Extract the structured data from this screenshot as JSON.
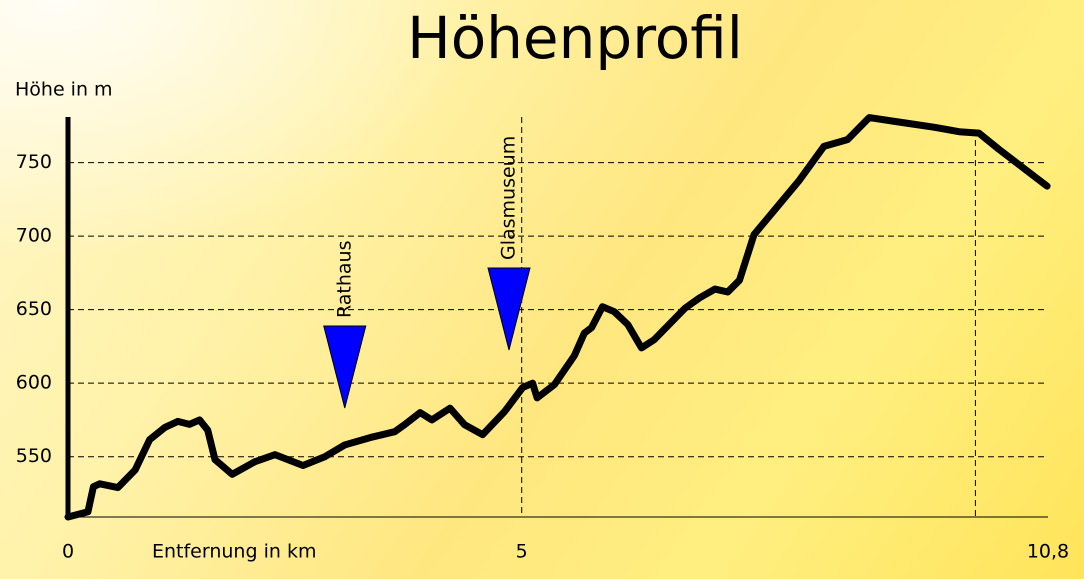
{
  "chart_data": {
    "type": "line",
    "title": "Höhenprofil",
    "y_label": "Höhe in m",
    "x_label": "Entfernung in km",
    "x": [
      0,
      0.22,
      0.28,
      0.35,
      0.55,
      0.74,
      0.9,
      1.07,
      1.21,
      1.34,
      1.45,
      1.54,
      1.62,
      1.81,
      2.06,
      2.28,
      2.59,
      2.83,
      3.05,
      3.33,
      3.6,
      3.71,
      3.88,
      4.01,
      4.21,
      4.37,
      4.57,
      4.81,
      5.01,
      5.12,
      5.17,
      5.36,
      5.58,
      5.69,
      5.77,
      5.89,
      6.02,
      6.17,
      6.32,
      6.46,
      6.8,
      6.96,
      7.13,
      7.27,
      7.4,
      7.56,
      7.79,
      8.06,
      8.33,
      8.59,
      8.83,
      9.22,
      9.55,
      9.82,
      10.04,
      10.26,
      10.79
    ],
    "series": [
      {
        "name": "Höhe",
        "color": "#000000",
        "values": [
          509,
          512.6,
          529.6,
          531.6,
          529,
          541,
          561.6,
          570,
          574,
          572,
          575,
          568,
          548,
          538,
          546.6,
          551.4,
          544,
          550,
          558,
          563,
          567,
          571.8,
          580,
          575,
          583,
          571.8,
          565,
          580.6,
          597,
          600,
          590,
          599,
          618.7,
          634,
          637.8,
          652,
          648.6,
          639.8,
          624,
          629.6,
          651,
          658,
          664,
          662,
          670,
          701,
          718,
          738,
          761,
          765.6,
          780.6,
          777,
          774,
          771,
          770,
          759,
          734
        ]
      }
    ],
    "xlim": [
      0,
      10.8
    ],
    "ylim": [
      509,
      781
    ],
    "xticks": [
      0,
      5,
      {
        "value": 10.8,
        "label": "10,8"
      }
    ],
    "yticks": [
      550,
      600,
      650,
      700,
      750
    ],
    "vlines": [
      5,
      10
    ],
    "grid": true,
    "annotations": [
      {
        "x": 3.05,
        "label": "Rathaus",
        "color": "#0000ff"
      },
      {
        "x": 4.86,
        "label": "Glasmuseum",
        "color": "#0000ff"
      }
    ]
  }
}
